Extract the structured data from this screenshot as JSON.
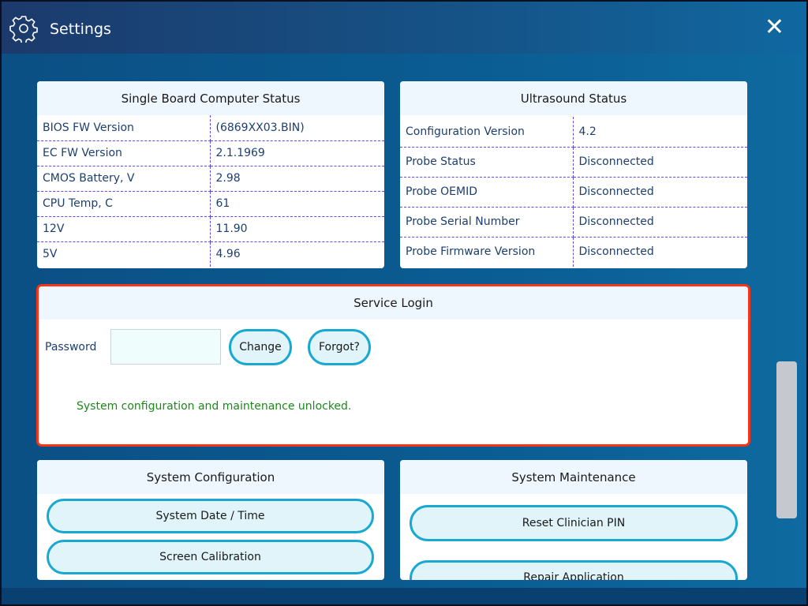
{
  "header": {
    "title": "Settings",
    "icon": "gear-icon",
    "close": "✕"
  },
  "sbc": {
    "title": "Single Board Computer Status",
    "rows": [
      {
        "label": "BIOS FW Version",
        "value": "(6869XX03.BIN)"
      },
      {
        "label": "EC FW Version",
        "value": "2.1.1969"
      },
      {
        "label": "CMOS Battery, V",
        "value": "2.98"
      },
      {
        "label": "CPU Temp, C",
        "value": "61"
      },
      {
        "label": "12V",
        "value": "11.90"
      },
      {
        "label": "5V",
        "value": "4.96"
      }
    ]
  },
  "ultrasound": {
    "title": "Ultrasound Status",
    "rows": [
      {
        "label": "Configuration Version",
        "value": "4.2"
      },
      {
        "label": "Probe Status",
        "value": "Disconnected"
      },
      {
        "label": "Probe OEMID",
        "value": "Disconnected"
      },
      {
        "label": "Probe Serial Number",
        "value": "Disconnected"
      },
      {
        "label": "Probe Firmware Version",
        "value": "Disconnected"
      }
    ]
  },
  "login": {
    "title": "Service Login",
    "password_label": "Password",
    "password_value": "",
    "change": "Change",
    "forgot": "Forgot?",
    "status": "System configuration and maintenance unlocked.",
    "status_color": "#1a8a1a",
    "border_color": "#f5341a"
  },
  "config": {
    "title": "System Configuration",
    "buttons": [
      "System Date / Time",
      "Screen Calibration"
    ]
  },
  "maintenance": {
    "title": "System Maintenance",
    "buttons": [
      "Reset Clinician PIN",
      "Repair Application"
    ]
  }
}
